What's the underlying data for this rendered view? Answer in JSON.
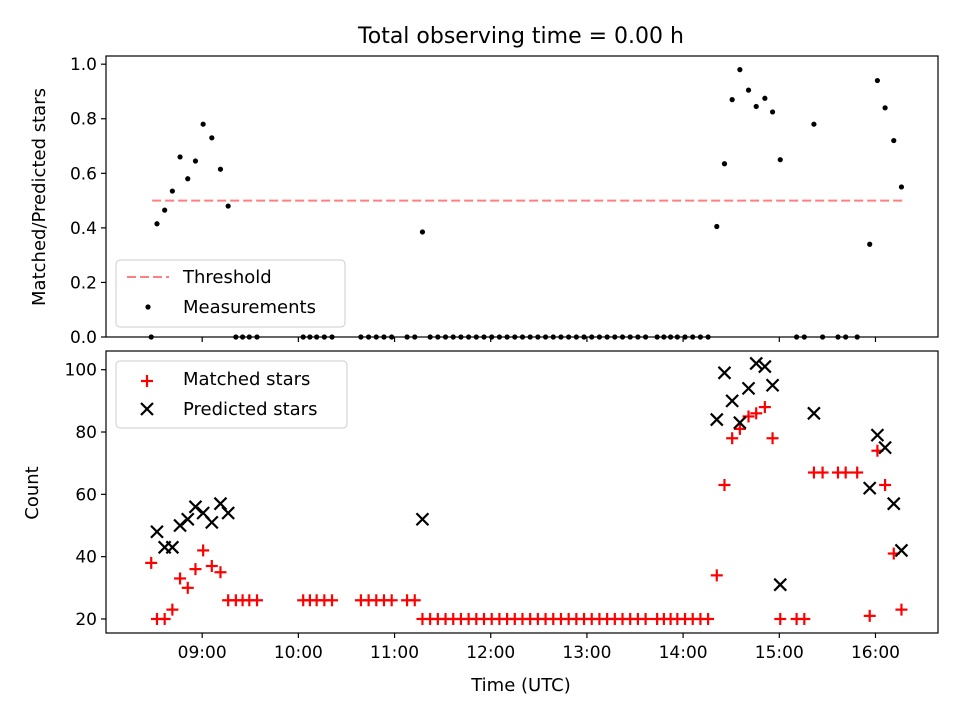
{
  "figure": {
    "title": "Total observing time = 0.00 h",
    "xlabel": "Time (UTC)",
    "x_ticks": [
      {
        "t": 9,
        "label": "09:00"
      },
      {
        "t": 10,
        "label": "10:00"
      },
      {
        "t": 11,
        "label": "11:00"
      },
      {
        "t": 12,
        "label": "12:00"
      },
      {
        "t": 13,
        "label": "13:00"
      },
      {
        "t": 14,
        "label": "14:00"
      },
      {
        "t": 15,
        "label": "15:00"
      },
      {
        "t": 16,
        "label": "16:00"
      }
    ]
  },
  "colors": {
    "threshold": "#ff7f7f",
    "measurements": "#000000",
    "matched": "#ff0000",
    "predicted": "#000000"
  },
  "chart_data": [
    {
      "type": "scatter",
      "ylabel": "Matched/Predicted stars",
      "xlim": [
        8.0,
        16.65
      ],
      "ylim": [
        0.0,
        1.03
      ],
      "y_ticks": [
        0.0,
        0.2,
        0.4,
        0.6,
        0.8,
        1.0
      ],
      "y_tick_labels": [
        "0.0",
        "0.2",
        "0.4",
        "0.6",
        "0.8",
        "1.0"
      ],
      "legend_position": "lower-left",
      "threshold": {
        "name": "Threshold",
        "value": 0.5,
        "x_range": [
          8.48,
          16.28
        ],
        "style": "dashed"
      },
      "series": [
        {
          "name": "Measurements",
          "marker": "dot",
          "points": [
            [
              8.47,
              0.0
            ],
            [
              8.53,
              0.415
            ],
            [
              8.61,
              0.465
            ],
            [
              8.69,
              0.535
            ],
            [
              8.77,
              0.66
            ],
            [
              8.85,
              0.58
            ],
            [
              8.93,
              0.645
            ],
            [
              9.01,
              0.78
            ],
            [
              9.1,
              0.73
            ],
            [
              9.19,
              0.615
            ],
            [
              9.27,
              0.48
            ],
            [
              9.35,
              0.0
            ],
            [
              9.42,
              0.0
            ],
            [
              9.49,
              0.0
            ],
            [
              9.57,
              0.0
            ],
            [
              10.05,
              0.0
            ],
            [
              10.12,
              0.0
            ],
            [
              10.19,
              0.0
            ],
            [
              10.27,
              0.0
            ],
            [
              10.35,
              0.0
            ],
            [
              10.65,
              0.0
            ],
            [
              10.73,
              0.0
            ],
            [
              10.81,
              0.0
            ],
            [
              10.89,
              0.0
            ],
            [
              10.97,
              0.0
            ],
            [
              11.13,
              0.0
            ],
            [
              11.21,
              0.0
            ],
            [
              11.29,
              0.385
            ],
            [
              11.37,
              0.0
            ],
            [
              11.45,
              0.0
            ],
            [
              11.53,
              0.0
            ],
            [
              11.61,
              0.0
            ],
            [
              11.69,
              0.0
            ],
            [
              11.77,
              0.0
            ],
            [
              11.85,
              0.0
            ],
            [
              11.93,
              0.0
            ],
            [
              12.01,
              0.0
            ],
            [
              12.09,
              0.0
            ],
            [
              12.17,
              0.0
            ],
            [
              12.25,
              0.0
            ],
            [
              12.33,
              0.0
            ],
            [
              12.41,
              0.0
            ],
            [
              12.49,
              0.0
            ],
            [
              12.57,
              0.0
            ],
            [
              12.65,
              0.0
            ],
            [
              12.73,
              0.0
            ],
            [
              12.81,
              0.0
            ],
            [
              12.89,
              0.0
            ],
            [
              12.97,
              0.0
            ],
            [
              13.05,
              0.0
            ],
            [
              13.13,
              0.0
            ],
            [
              13.21,
              0.0
            ],
            [
              13.29,
              0.0
            ],
            [
              13.37,
              0.0
            ],
            [
              13.45,
              0.0
            ],
            [
              13.53,
              0.0
            ],
            [
              13.61,
              0.0
            ],
            [
              13.73,
              0.0
            ],
            [
              13.8,
              0.0
            ],
            [
              13.87,
              0.0
            ],
            [
              13.94,
              0.0
            ],
            [
              14.02,
              0.0
            ],
            [
              14.1,
              0.0
            ],
            [
              14.18,
              0.0
            ],
            [
              14.26,
              0.0
            ],
            [
              14.35,
              0.405
            ],
            [
              14.43,
              0.635
            ],
            [
              14.51,
              0.87
            ],
            [
              14.59,
              0.98
            ],
            [
              14.68,
              0.905
            ],
            [
              14.76,
              0.845
            ],
            [
              14.85,
              0.875
            ],
            [
              14.93,
              0.825
            ],
            [
              15.01,
              0.65
            ],
            [
              15.18,
              0.0
            ],
            [
              15.26,
              0.0
            ],
            [
              15.36,
              0.78
            ],
            [
              15.45,
              0.0
            ],
            [
              15.61,
              0.0
            ],
            [
              15.69,
              0.0
            ],
            [
              15.81,
              0.0
            ],
            [
              15.94,
              0.34
            ],
            [
              16.02,
              0.94
            ],
            [
              16.1,
              0.84
            ],
            [
              16.19,
              0.72
            ],
            [
              16.27,
              0.55
            ]
          ]
        }
      ]
    },
    {
      "type": "scatter",
      "ylabel": "Count",
      "xlabel": "Time (UTC)",
      "xlim": [
        8.0,
        16.65
      ],
      "ylim": [
        15.5,
        106
      ],
      "y_ticks": [
        20,
        40,
        60,
        80,
        100
      ],
      "y_tick_labels": [
        "20",
        "40",
        "60",
        "80",
        "100"
      ],
      "legend_position": "upper-left",
      "series": [
        {
          "name": "Matched stars",
          "marker": "plus",
          "points": [
            [
              8.47,
              38
            ],
            [
              8.53,
              20
            ],
            [
              8.61,
              20
            ],
            [
              8.69,
              23
            ],
            [
              8.77,
              33
            ],
            [
              8.85,
              30
            ],
            [
              8.93,
              36
            ],
            [
              9.01,
              42
            ],
            [
              9.1,
              37
            ],
            [
              9.19,
              35
            ],
            [
              9.27,
              26
            ],
            [
              9.35,
              26
            ],
            [
              9.42,
              26
            ],
            [
              9.49,
              26
            ],
            [
              9.57,
              26
            ],
            [
              10.05,
              26
            ],
            [
              10.12,
              26
            ],
            [
              10.19,
              26
            ],
            [
              10.27,
              26
            ],
            [
              10.35,
              26
            ],
            [
              10.65,
              26
            ],
            [
              10.73,
              26
            ],
            [
              10.81,
              26
            ],
            [
              10.89,
              26
            ],
            [
              10.97,
              26
            ],
            [
              11.13,
              26
            ],
            [
              11.21,
              26
            ],
            [
              11.29,
              20
            ],
            [
              11.37,
              20
            ],
            [
              11.45,
              20
            ],
            [
              11.53,
              20
            ],
            [
              11.61,
              20
            ],
            [
              11.69,
              20
            ],
            [
              11.77,
              20
            ],
            [
              11.85,
              20
            ],
            [
              11.93,
              20
            ],
            [
              12.01,
              20
            ],
            [
              12.09,
              20
            ],
            [
              12.17,
              20
            ],
            [
              12.25,
              20
            ],
            [
              12.33,
              20
            ],
            [
              12.41,
              20
            ],
            [
              12.49,
              20
            ],
            [
              12.57,
              20
            ],
            [
              12.65,
              20
            ],
            [
              12.73,
              20
            ],
            [
              12.81,
              20
            ],
            [
              12.89,
              20
            ],
            [
              12.97,
              20
            ],
            [
              13.05,
              20
            ],
            [
              13.13,
              20
            ],
            [
              13.21,
              20
            ],
            [
              13.29,
              20
            ],
            [
              13.37,
              20
            ],
            [
              13.45,
              20
            ],
            [
              13.53,
              20
            ],
            [
              13.61,
              20
            ],
            [
              13.73,
              20
            ],
            [
              13.8,
              20
            ],
            [
              13.87,
              20
            ],
            [
              13.94,
              20
            ],
            [
              14.02,
              20
            ],
            [
              14.1,
              20
            ],
            [
              14.18,
              20
            ],
            [
              14.26,
              20
            ],
            [
              14.35,
              34
            ],
            [
              14.43,
              63
            ],
            [
              14.51,
              78
            ],
            [
              14.59,
              81
            ],
            [
              14.68,
              85
            ],
            [
              14.76,
              86
            ],
            [
              14.85,
              88
            ],
            [
              14.93,
              78
            ],
            [
              15.01,
              20
            ],
            [
              15.18,
              20
            ],
            [
              15.26,
              20
            ],
            [
              15.36,
              67
            ],
            [
              15.45,
              67
            ],
            [
              15.61,
              67
            ],
            [
              15.69,
              67
            ],
            [
              15.81,
              67
            ],
            [
              15.94,
              21
            ],
            [
              16.02,
              74
            ],
            [
              16.1,
              63
            ],
            [
              16.19,
              41
            ],
            [
              16.27,
              23
            ]
          ]
        },
        {
          "name": "Predicted stars",
          "marker": "x",
          "points": [
            [
              8.53,
              48
            ],
            [
              8.61,
              43
            ],
            [
              8.69,
              43
            ],
            [
              8.77,
              50
            ],
            [
              8.85,
              52
            ],
            [
              8.93,
              56
            ],
            [
              9.01,
              54
            ],
            [
              9.1,
              51
            ],
            [
              9.19,
              57
            ],
            [
              9.27,
              54
            ],
            [
              11.29,
              52
            ],
            [
              14.35,
              84
            ],
            [
              14.43,
              99
            ],
            [
              14.51,
              90
            ],
            [
              14.59,
              83
            ],
            [
              14.68,
              94
            ],
            [
              14.76,
              102
            ],
            [
              14.85,
              101
            ],
            [
              14.93,
              95
            ],
            [
              15.01,
              31
            ],
            [
              15.36,
              86
            ],
            [
              15.94,
              62
            ],
            [
              16.02,
              79
            ],
            [
              16.1,
              75
            ],
            [
              16.19,
              57
            ],
            [
              16.27,
              42
            ]
          ]
        }
      ]
    }
  ]
}
